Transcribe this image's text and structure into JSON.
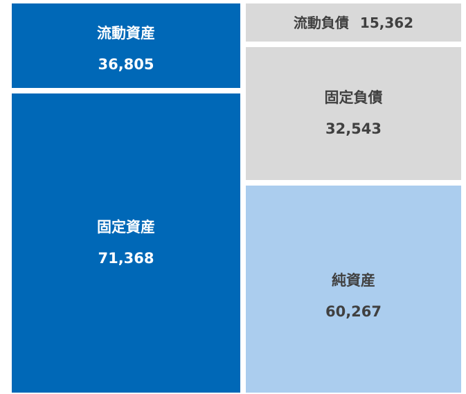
{
  "boxes": [
    {
      "label": "流動資産",
      "value": "36,805"
    },
    {
      "label": "固定資産",
      "value": "71,368"
    },
    {
      "label": "流動負債",
      "value": "15,362"
    },
    {
      "label": "固定負債",
      "value": "32,543"
    },
    {
      "label": "純資産",
      "value": "60,267"
    }
  ]
}
